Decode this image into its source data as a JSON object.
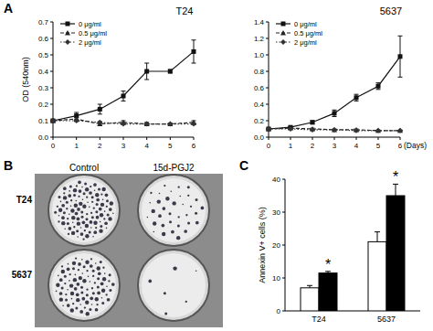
{
  "panel_labels": [
    "A",
    "B",
    "C"
  ],
  "plates": {
    "columns": [
      "Control",
      "15d-PGJ2"
    ],
    "rows": [
      "T24",
      "5637"
    ]
  },
  "chart_data": [
    {
      "type": "line",
      "title": "T24",
      "y_label": "OD (540nm)",
      "x": [
        0,
        1,
        2,
        3,
        4,
        5,
        6
      ],
      "xlim": [
        0,
        6
      ],
      "xticks": [
        0,
        1,
        2,
        3,
        4,
        5,
        6
      ],
      "ylim": [
        0,
        0.7
      ],
      "yticks": [
        {
          "value": 0,
          "label": "0.0"
        },
        0.1,
        0.2,
        0.3,
        0.4,
        0.5,
        0.6,
        0.7
      ],
      "legend": "upper-left",
      "series": [
        {
          "name": "0 μg/ml",
          "color": "#111111",
          "marker": "square",
          "line_style": "solid",
          "values": [
            0.1,
            0.13,
            0.17,
            0.25,
            0.4,
            0.4,
            0.52
          ],
          "errors": [
            0.005,
            0.02,
            0.03,
            0.03,
            0.05,
            0.01,
            0.07
          ]
        },
        {
          "name": "0.5 μg/ml",
          "color": "#222222",
          "marker": "triangle",
          "line_style": "dashed",
          "values": [
            0.1,
            0.11,
            0.08,
            0.09,
            0.08,
            0.08,
            0.09
          ],
          "errors": [
            0.005,
            0.01,
            0.01,
            0.01,
            0.01,
            0.005,
            0.01
          ]
        },
        {
          "name": "2 μg/ml",
          "color": "#333333",
          "marker": "diamond",
          "line_style": "dotted",
          "values": [
            0.1,
            0.1,
            0.09,
            0.08,
            0.08,
            0.08,
            0.08
          ],
          "errors": [
            0.005,
            0.005,
            0.005,
            0.005,
            0.005,
            0.005,
            0.005
          ]
        }
      ]
    },
    {
      "type": "line",
      "title": "5637",
      "x_label": "(Days)",
      "x": [
        0,
        1,
        2,
        3,
        4,
        5,
        6
      ],
      "xlim": [
        0,
        6
      ],
      "xticks": [
        0,
        1,
        2,
        3,
        4,
        5,
        6
      ],
      "ylim": [
        0,
        1.4
      ],
      "yticks": [
        {
          "value": 0,
          "label": "0.0"
        },
        0.2,
        0.4,
        0.6,
        0.8,
        {
          "value": 1,
          "label": "1.0"
        },
        1.2,
        1.4
      ],
      "legend": "upper-left",
      "series": [
        {
          "name": "0 μg/ml",
          "color": "#111111",
          "marker": "square",
          "line_style": "solid",
          "values": [
            0.1,
            0.12,
            0.18,
            0.29,
            0.48,
            0.62,
            0.98
          ],
          "errors": [
            0.01,
            0.01,
            0.02,
            0.04,
            0.04,
            0.04,
            0.25
          ]
        },
        {
          "name": "0.5 μg/ml",
          "color": "#222222",
          "marker": "triangle",
          "line_style": "dashed",
          "values": [
            0.1,
            0.11,
            0.1,
            0.09,
            0.09,
            0.08,
            0.08
          ],
          "errors": [
            0.005,
            0.01,
            0.01,
            0.01,
            0.01,
            0.005,
            0.005
          ]
        },
        {
          "name": "2 μg/ml",
          "color": "#333333",
          "marker": "diamond",
          "line_style": "dotted",
          "values": [
            0.1,
            0.1,
            0.09,
            0.09,
            0.08,
            0.08,
            0.08
          ],
          "errors": [
            0.005,
            0.005,
            0.005,
            0.005,
            0.005,
            0.005,
            0.005
          ]
        }
      ]
    },
    {
      "type": "bar",
      "y_label": "Annexin V+ cells (%)",
      "categories": [
        "T24",
        "5637"
      ],
      "ylim": [
        0,
        40
      ],
      "yticks": [
        0,
        10,
        20,
        30,
        40
      ],
      "series": [
        {
          "color": "#ffffff",
          "values": [
            7,
            21
          ],
          "errors": [
            0.7,
            3
          ]
        },
        {
          "color": "#000000",
          "values": [
            11.5,
            35
          ],
          "errors": [
            0.5,
            3.5
          ],
          "annotations": [
            "*",
            "*"
          ]
        }
      ]
    }
  ]
}
